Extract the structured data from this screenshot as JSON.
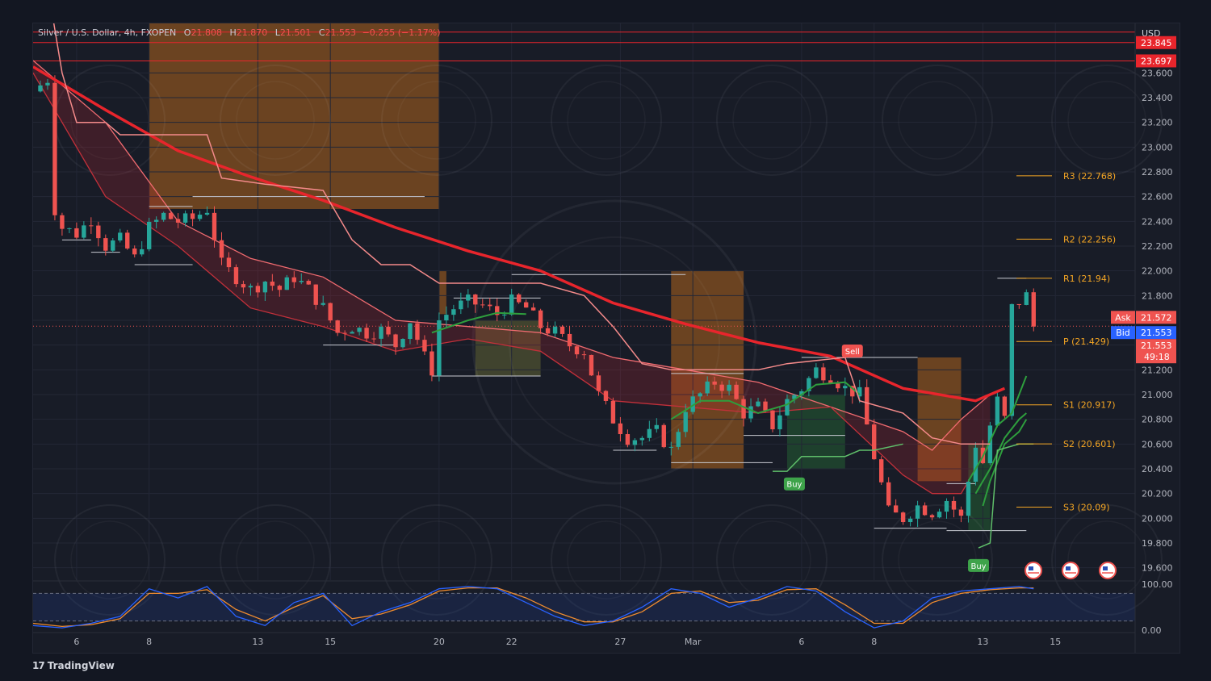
{
  "header": {
    "symbol": "Silver / U.S. Dollar, 4h, FXOPEN",
    "o_label": "O",
    "o_value": "21.808",
    "h_label": "H",
    "h_value": "21.870",
    "l_label": "L",
    "l_value": "21.501",
    "c_label": "C",
    "c_value": "21.553",
    "change": "−0.255 (−1.17%)"
  },
  "brand": {
    "logo": "17",
    "name": "TradingView"
  },
  "colors": {
    "bull": "#26a69a",
    "bear": "#ef5350",
    "ema": "#e8252c",
    "ribbon": "#f06b70",
    "green_line": "#2e9e3d",
    "orange_zone": "#b0651e",
    "pivot": "#f5a623",
    "bid": "#2962ff",
    "stoch_k": "#2962ff",
    "stoch_d": "#f08c2f"
  },
  "chart_data": {
    "type": "candlestick",
    "currency": "USD",
    "ylim": [
      19.5,
      24.0
    ],
    "xlim": [
      0,
      76
    ],
    "x_ticks": [
      {
        "label": "6",
        "x": 3
      },
      {
        "label": "8",
        "x": 8
      },
      {
        "label": "13",
        "x": 15.5
      },
      {
        "label": "15",
        "x": 20.5
      },
      {
        "label": "20",
        "x": 28
      },
      {
        "label": "22",
        "x": 33
      },
      {
        "label": "27",
        "x": 40.5
      },
      {
        "label": "Mar",
        "x": 45.5
      },
      {
        "label": "6",
        "x": 53
      },
      {
        "label": "8",
        "x": 58
      },
      {
        "label": "13",
        "x": 65.5
      },
      {
        "label": "15",
        "x": 70.5
      }
    ],
    "y_ticks": [
      "19.600",
      "19.800",
      "20.000",
      "20.200",
      "20.400",
      "20.600",
      "20.800",
      "21.000",
      "21.200",
      "21.400",
      "21.600",
      "21.800",
      "22.000",
      "22.200",
      "22.400",
      "22.600",
      "22.800",
      "23.000",
      "23.200",
      "23.400",
      "23.600"
    ],
    "price_labels": [
      {
        "text": "23.845",
        "value": 23.845,
        "color": "#e8252c"
      },
      {
        "text": "23.697",
        "value": 23.697,
        "color": "#e8252c"
      }
    ],
    "current_price": {
      "value": 21.553,
      "text": "21.553",
      "countdown": "49:18"
    },
    "ask": {
      "label": "Ask",
      "value": 21.572,
      "text": "21.572"
    },
    "bid": {
      "label": "Bid",
      "value": 21.553,
      "text": "21.553"
    },
    "horizontal_lines": [
      23.93,
      23.845,
      23.697
    ],
    "pivots": [
      {
        "label": "R3 (22.768)",
        "value": 22.768
      },
      {
        "label": "R2 (22.256)",
        "value": 22.256
      },
      {
        "label": "R1 (21.94)",
        "value": 21.94
      },
      {
        "label": "P (21.429)",
        "value": 21.429
      },
      {
        "label": "S1 (20.917)",
        "value": 20.917
      },
      {
        "label": "S2 (20.601)",
        "value": 20.601
      },
      {
        "label": "S3 (20.09)",
        "value": 20.09
      }
    ],
    "signals": [
      {
        "label": "Sell",
        "x": 56.5,
        "value": 21.3,
        "type": "sell"
      },
      {
        "label": "Buy",
        "x": 52.5,
        "value": 20.33,
        "type": "buy"
      },
      {
        "label": "Buy",
        "x": 65.2,
        "value": 19.67,
        "type": "buy"
      }
    ],
    "close_path": [
      [
        0,
        23.45
      ],
      [
        1,
        23.55
      ],
      [
        1.5,
        22.5
      ],
      [
        2,
        22.35
      ],
      [
        3,
        22.3
      ],
      [
        4,
        22.42
      ],
      [
        5,
        22.2
      ],
      [
        6,
        22.25
      ],
      [
        7,
        22.1
      ],
      [
        8,
        22.35
      ],
      [
        9,
        22.45
      ],
      [
        10,
        22.4
      ],
      [
        11,
        22.42
      ],
      [
        12,
        22.5
      ],
      [
        13,
        22.05
      ],
      [
        14,
        21.95
      ],
      [
        15,
        21.85
      ],
      [
        16,
        21.92
      ],
      [
        17,
        21.85
      ],
      [
        18,
        21.95
      ],
      [
        19,
        21.85
      ],
      [
        20,
        21.7
      ],
      [
        21,
        21.5
      ],
      [
        22,
        21.55
      ],
      [
        23,
        21.5
      ],
      [
        24,
        21.52
      ],
      [
        25,
        21.4
      ],
      [
        26,
        21.6
      ],
      [
        27,
        21.3
      ],
      [
        27.5,
        21.2
      ],
      [
        28,
        21.6
      ],
      [
        29,
        21.7
      ],
      [
        30,
        21.75
      ],
      [
        31,
        21.72
      ],
      [
        32,
        21.65
      ],
      [
        33,
        21.75
      ],
      [
        34,
        21.7
      ],
      [
        35,
        21.55
      ],
      [
        36,
        21.5
      ],
      [
        37,
        21.4
      ],
      [
        38,
        21.35
      ],
      [
        39,
        21.0
      ],
      [
        40,
        20.8
      ],
      [
        41,
        20.65
      ],
      [
        42,
        20.65
      ],
      [
        43,
        20.7
      ],
      [
        44,
        20.55
      ],
      [
        45,
        20.9
      ],
      [
        46,
        21.0
      ],
      [
        47,
        21.1
      ],
      [
        48,
        21.05
      ],
      [
        49,
        20.85
      ],
      [
        50,
        20.9
      ],
      [
        51,
        20.75
      ],
      [
        52,
        20.95
      ],
      [
        53,
        21.05
      ],
      [
        54,
        21.2
      ],
      [
        55,
        21.15
      ],
      [
        56,
        21.05
      ],
      [
        57,
        21.0
      ],
      [
        58,
        20.5
      ],
      [
        59,
        20.05
      ],
      [
        60,
        20.0
      ],
      [
        61,
        20.1
      ],
      [
        62,
        20.05
      ],
      [
        63,
        20.15
      ],
      [
        64,
        20.0
      ],
      [
        64.5,
        20.3
      ],
      [
        65,
        20.6
      ],
      [
        65.5,
        20.45
      ],
      [
        66,
        20.75
      ],
      [
        66.5,
        20.95
      ],
      [
        67,
        20.8
      ],
      [
        67.5,
        21.7
      ],
      [
        68,
        21.75
      ],
      [
        68.5,
        21.8
      ],
      [
        69,
        21.55
      ]
    ],
    "ema": [
      [
        0,
        23.65
      ],
      [
        5,
        23.3
      ],
      [
        10,
        22.97
      ],
      [
        15,
        22.76
      ],
      [
        20,
        22.57
      ],
      [
        25,
        22.35
      ],
      [
        30,
        22.16
      ],
      [
        35,
        22.0
      ],
      [
        40,
        21.74
      ],
      [
        45,
        21.57
      ],
      [
        50,
        21.42
      ],
      [
        55,
        21.31
      ],
      [
        60,
        21.05
      ],
      [
        65,
        20.95
      ],
      [
        67,
        21.05
      ]
    ],
    "ribbon_upper": [
      [
        0,
        23.7
      ],
      [
        5,
        23.2
      ],
      [
        10,
        22.4
      ],
      [
        15,
        22.1
      ],
      [
        20,
        21.95
      ],
      [
        25,
        21.6
      ],
      [
        30,
        21.55
      ],
      [
        35,
        21.5
      ],
      [
        40,
        21.3
      ],
      [
        45,
        21.2
      ],
      [
        50,
        21.1
      ],
      [
        55,
        20.9
      ],
      [
        60,
        20.7
      ],
      [
        62,
        20.55
      ],
      [
        64,
        20.8
      ],
      [
        66,
        21.0
      ]
    ],
    "ribbon_lower": [
      [
        0,
        23.6
      ],
      [
        5,
        22.6
      ],
      [
        10,
        22.2
      ],
      [
        15,
        21.7
      ],
      [
        20,
        21.55
      ],
      [
        25,
        21.35
      ],
      [
        30,
        21.45
      ],
      [
        35,
        21.35
      ],
      [
        40,
        20.95
      ],
      [
        45,
        20.9
      ],
      [
        50,
        20.85
      ],
      [
        55,
        20.9
      ],
      [
        60,
        20.35
      ],
      [
        62,
        20.2
      ],
      [
        64,
        20.2
      ],
      [
        66,
        20.6
      ]
    ],
    "green_lines": [
      [
        [
          27.5,
          21.5
        ],
        [
          30,
          21.6
        ],
        [
          32,
          21.66
        ],
        [
          34,
          21.65
        ]
      ],
      [
        [
          44,
          20.8
        ],
        [
          46,
          20.95
        ],
        [
          48,
          20.95
        ],
        [
          50,
          20.85
        ],
        [
          52,
          20.92
        ],
        [
          54,
          21.08
        ],
        [
          56,
          21.1
        ],
        [
          57,
          21.0
        ]
      ],
      [
        [
          64.5,
          20.3
        ],
        [
          65.5,
          20.5
        ],
        [
          66.5,
          20.75
        ],
        [
          67.5,
          20.85
        ],
        [
          68.5,
          21.15
        ]
      ],
      [
        [
          65,
          20.2
        ],
        [
          66,
          20.4
        ],
        [
          67,
          20.65
        ],
        [
          68,
          20.8
        ],
        [
          68.5,
          20.85
        ]
      ],
      [
        [
          65.5,
          20.1
        ],
        [
          66,
          20.3
        ],
        [
          67,
          20.6
        ],
        [
          68,
          20.7
        ],
        [
          68.5,
          20.8
        ]
      ]
    ],
    "supertrend": [
      [
        [
          1,
          24.3
        ],
        [
          2,
          23.6
        ],
        [
          3,
          23.2
        ],
        [
          5,
          23.2
        ],
        [
          6,
          23.1
        ],
        [
          10,
          23.1
        ],
        [
          12,
          23.1
        ],
        [
          13,
          22.75
        ],
        [
          16,
          22.7
        ],
        [
          20,
          22.65
        ],
        [
          22,
          22.25
        ],
        [
          24,
          22.05
        ],
        [
          26,
          22.05
        ],
        [
          28,
          21.9
        ],
        [
          35,
          21.9
        ],
        [
          38,
          21.8
        ],
        [
          40,
          21.55
        ],
        [
          42,
          21.25
        ],
        [
          44,
          21.2
        ],
        [
          50,
          21.2
        ],
        [
          52,
          21.25
        ],
        [
          56,
          21.3
        ],
        [
          57,
          20.95
        ],
        [
          60,
          20.85
        ],
        [
          62,
          20.65
        ],
        [
          64,
          20.6
        ],
        [
          66,
          20.6
        ]
      ],
      [
        [
          51,
          20.38
        ],
        [
          52,
          20.38
        ],
        [
          53,
          20.5
        ],
        [
          56,
          20.5
        ],
        [
          57,
          20.55
        ],
        [
          58,
          20.55
        ],
        [
          60,
          20.6
        ]
      ],
      [
        [
          65.2,
          19.76
        ],
        [
          66,
          19.8
        ],
        [
          66.5,
          20.55
        ],
        [
          68,
          20.6
        ],
        [
          69,
          20.6
        ]
      ]
    ],
    "swing_lines": [
      [
        2,
        4,
        22.25
      ],
      [
        4,
        6,
        22.15
      ],
      [
        7,
        11,
        22.05
      ],
      [
        11,
        15,
        22.6
      ],
      [
        15,
        27,
        22.6
      ],
      [
        8,
        11,
        22.52
      ],
      [
        20,
        25,
        21.4
      ],
      [
        27.5,
        35,
        21.15
      ],
      [
        29,
        35,
        21.78
      ],
      [
        33,
        45,
        21.97
      ],
      [
        40,
        43,
        20.55
      ],
      [
        44,
        51,
        20.45
      ],
      [
        44,
        49,
        21.17
      ],
      [
        49,
        56,
        20.67
      ],
      [
        53,
        61,
        21.3
      ],
      [
        58,
        63,
        19.92
      ],
      [
        63,
        68.5,
        19.9
      ],
      [
        63,
        65,
        20.28
      ],
      [
        66.5,
        68.5,
        21.94
      ]
    ],
    "zones": [
      {
        "x0": 8,
        "x1": 28,
        "y0": 24.0,
        "y1": 22.5,
        "color": "orange"
      },
      {
        "x0": 28,
        "x1": 28.5,
        "y0": 22.0,
        "y1": 21.65,
        "color": "orange"
      },
      {
        "x0": 44,
        "x1": 49,
        "y0": 22.0,
        "y1": 20.4,
        "color": "orange"
      },
      {
        "x0": 61,
        "x1": 64,
        "y0": 21.3,
        "y1": 20.3,
        "color": "orange"
      },
      {
        "x0": 30.5,
        "x1": 35,
        "y0": 21.6,
        "y1": 21.15,
        "color": "olive"
      },
      {
        "x0": 52,
        "x1": 56,
        "y0": 21.0,
        "y1": 20.4,
        "color": "green"
      },
      {
        "x0": 64.5,
        "x1": 66,
        "y0": 20.6,
        "y1": 19.9,
        "color": "green"
      }
    ],
    "stochastic": {
      "ylim": [
        0,
        100
      ],
      "levels": [
        80,
        20
      ],
      "tick_labels": [
        "100.00",
        "0.00"
      ],
      "k": [
        [
          0,
          10
        ],
        [
          2,
          5
        ],
        [
          4,
          15
        ],
        [
          6,
          30
        ],
        [
          8,
          90
        ],
        [
          10,
          70
        ],
        [
          12,
          95
        ],
        [
          14,
          30
        ],
        [
          16,
          10
        ],
        [
          18,
          60
        ],
        [
          20,
          80
        ],
        [
          22,
          10
        ],
        [
          24,
          40
        ],
        [
          26,
          60
        ],
        [
          28,
          90
        ],
        [
          30,
          95
        ],
        [
          32,
          90
        ],
        [
          34,
          60
        ],
        [
          36,
          30
        ],
        [
          38,
          10
        ],
        [
          40,
          20
        ],
        [
          42,
          50
        ],
        [
          44,
          90
        ],
        [
          46,
          80
        ],
        [
          48,
          50
        ],
        [
          50,
          70
        ],
        [
          52,
          95
        ],
        [
          54,
          85
        ],
        [
          56,
          40
        ],
        [
          58,
          5
        ],
        [
          60,
          20
        ],
        [
          62,
          70
        ],
        [
          64,
          85
        ],
        [
          66,
          90
        ],
        [
          68,
          95
        ],
        [
          69,
          90
        ]
      ],
      "d": [
        [
          0,
          15
        ],
        [
          2,
          8
        ],
        [
          4,
          12
        ],
        [
          6,
          25
        ],
        [
          8,
          80
        ],
        [
          10,
          80
        ],
        [
          12,
          88
        ],
        [
          14,
          45
        ],
        [
          16,
          20
        ],
        [
          18,
          50
        ],
        [
          20,
          75
        ],
        [
          22,
          25
        ],
        [
          24,
          35
        ],
        [
          26,
          55
        ],
        [
          28,
          85
        ],
        [
          30,
          92
        ],
        [
          32,
          92
        ],
        [
          34,
          70
        ],
        [
          36,
          40
        ],
        [
          38,
          18
        ],
        [
          40,
          18
        ],
        [
          42,
          40
        ],
        [
          44,
          80
        ],
        [
          46,
          85
        ],
        [
          48,
          60
        ],
        [
          50,
          65
        ],
        [
          52,
          88
        ],
        [
          54,
          90
        ],
        [
          56,
          55
        ],
        [
          58,
          15
        ],
        [
          60,
          15
        ],
        [
          62,
          60
        ],
        [
          64,
          80
        ],
        [
          66,
          88
        ],
        [
          68,
          92
        ],
        [
          69,
          92
        ]
      ]
    }
  }
}
